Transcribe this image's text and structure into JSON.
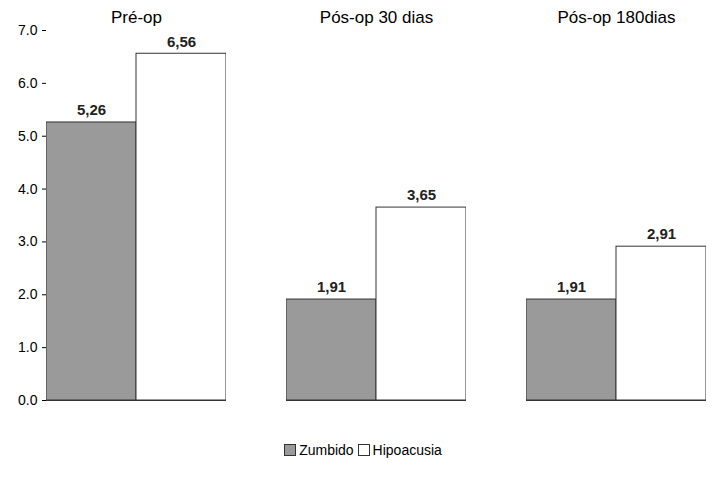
{
  "chart_data": {
    "type": "bar",
    "categories": [
      "Pré-op",
      "Pós-op 30 dias",
      "Pós-op 180dias"
    ],
    "series": [
      {
        "name": "Zumbido",
        "color": "#9a9a9a",
        "values": [
          5.26,
          1.91,
          1.91
        ],
        "value_labels": [
          "5,26",
          "1,91",
          "1,91"
        ]
      },
      {
        "name": "Hipoacusia",
        "color": "#ffffff",
        "values": [
          6.56,
          3.65,
          2.91
        ],
        "value_labels": [
          "6,56",
          "3,65",
          "2,91"
        ]
      }
    ],
    "ylim": [
      0,
      7
    ],
    "yticks": [
      0,
      1,
      2,
      3,
      4,
      5,
      6,
      7
    ],
    "grid": false,
    "legend": "bottom",
    "data_labels": true
  }
}
